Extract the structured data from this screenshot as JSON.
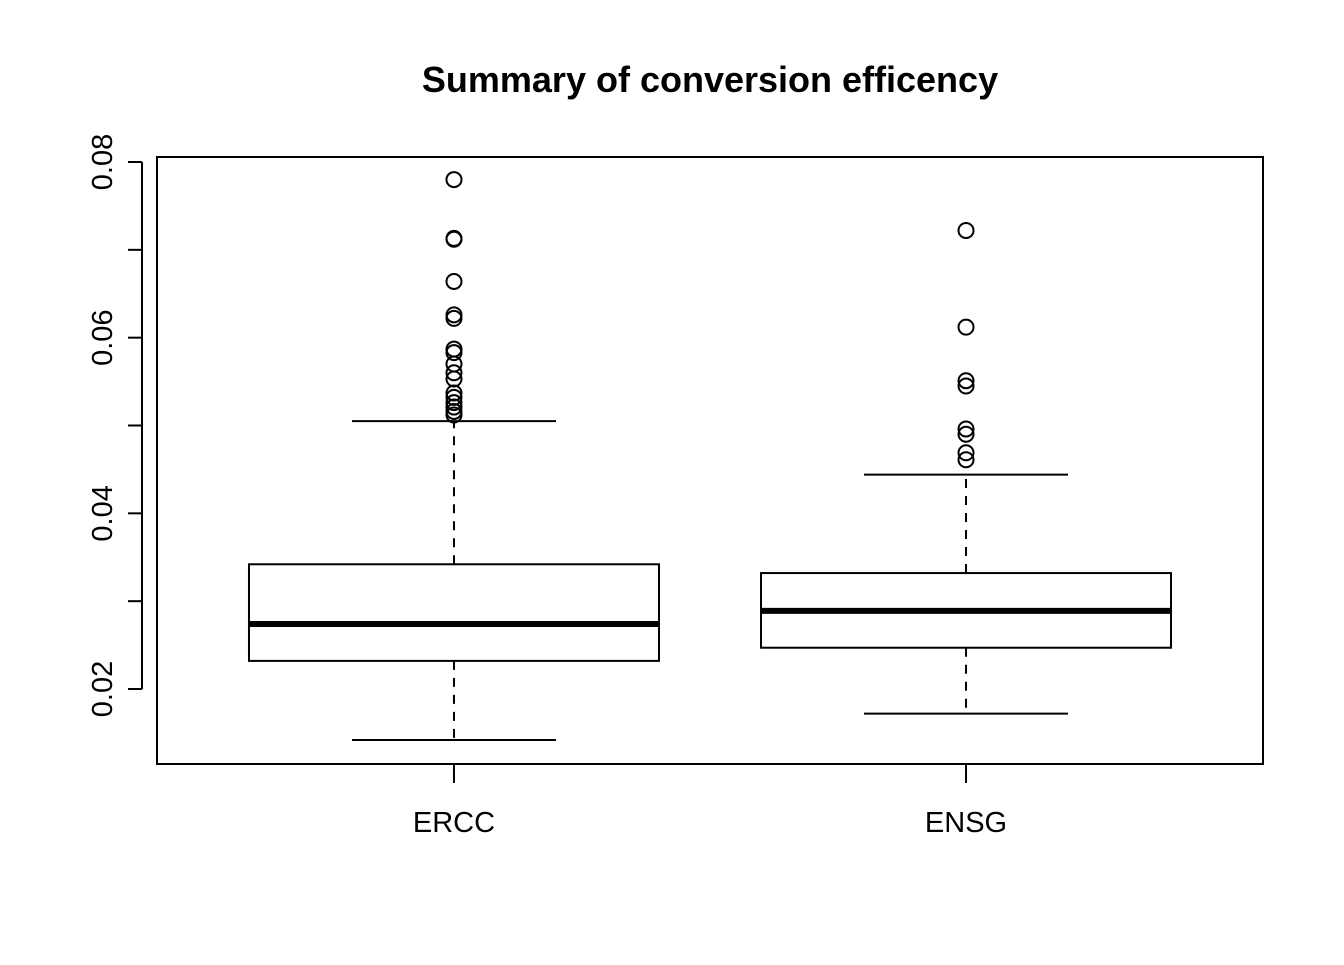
{
  "chart_data": {
    "type": "boxplot",
    "title": "Summary of conversion efficency",
    "xlabel": "",
    "ylabel": "",
    "categories": [
      "ERCC",
      "ENSG"
    ],
    "ylim": [
      0.012,
      0.081
    ],
    "yticks": [
      0.02,
      0.04,
      0.06,
      0.08
    ],
    "ytick_labels": [
      "0.02",
      "0.04",
      "0.06",
      "0.08"
    ],
    "grid": false,
    "legend": "none",
    "boxes": [
      {
        "name": "ERCC",
        "whisker_low": 0.0142,
        "q1": 0.0232,
        "median": 0.0274,
        "q3": 0.0342,
        "whisker_high": 0.0505,
        "outliers": [
          0.078,
          0.0713,
          0.0712,
          0.0664,
          0.0626,
          0.0622,
          0.0587,
          0.0583,
          0.057,
          0.056,
          0.0553,
          0.0537,
          0.0532,
          0.0526,
          0.0521,
          0.0516,
          0.0512
        ]
      },
      {
        "name": "ENSG",
        "whisker_low": 0.0172,
        "q1": 0.0247,
        "median": 0.0289,
        "q3": 0.0332,
        "whisker_high": 0.0444,
        "outliers": [
          0.0722,
          0.0612,
          0.0551,
          0.0545,
          0.0496,
          0.049,
          0.0469,
          0.0461
        ]
      }
    ],
    "colors": {
      "box_fill": "#ffffff",
      "stroke": "#000000"
    }
  }
}
